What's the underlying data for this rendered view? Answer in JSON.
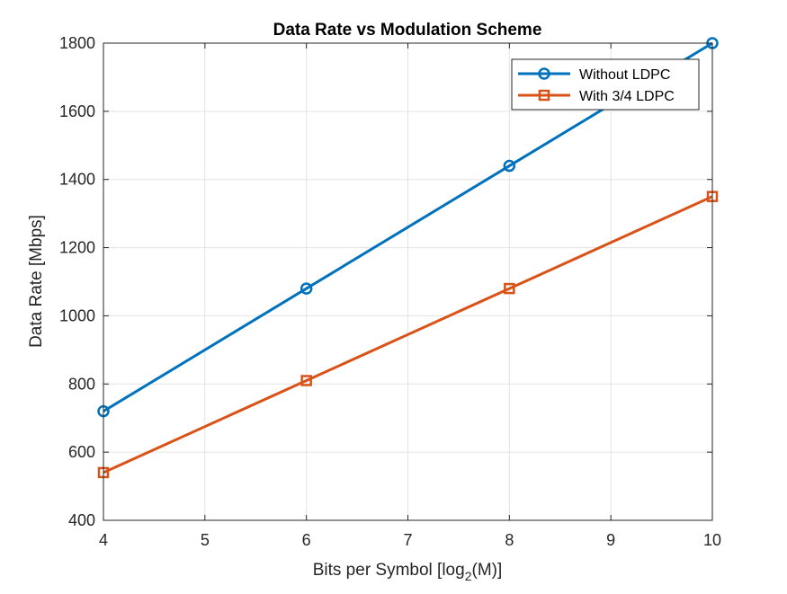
{
  "chart_data": {
    "type": "line",
    "title": "Data Rate vs Modulation Scheme",
    "xlabel_main": "Bits per Symbol [log",
    "xlabel_sub": "2",
    "xlabel_tail": "(M)]",
    "ylabel": "Data Rate [Mbps]",
    "xlim": [
      4,
      10
    ],
    "ylim": [
      400,
      1800
    ],
    "xticks": [
      4,
      5,
      6,
      7,
      8,
      9,
      10
    ],
    "yticks": [
      400,
      600,
      800,
      1000,
      1200,
      1400,
      1600,
      1800
    ],
    "grid": true,
    "legend_location": "top-right",
    "x": [
      4,
      6,
      8,
      10
    ],
    "series": [
      {
        "name": "Without LDPC",
        "values": [
          720,
          1080,
          1440,
          1800
        ],
        "color": "#0072BD",
        "marker": "circle"
      },
      {
        "name": "With 3/4 LDPC",
        "values": [
          540,
          810,
          1080,
          1350
        ],
        "color": "#D95319",
        "marker": "square"
      }
    ]
  }
}
